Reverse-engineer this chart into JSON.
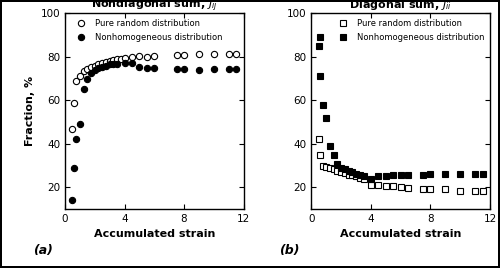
{
  "panel_a_title": "Nondiagonal sum, $J_{ij}$",
  "panel_b_title": "Diagonal sum, $J_{ii}$",
  "xlabel": "Accumulated strain",
  "ylabel": "Fraction, %",
  "label_a": "(a)",
  "label_b": "(b)",
  "legend_pure": "Pure random distribution",
  "legend_nonhom": "Nonhomogeneous distribution",
  "panel_a_pure_x": [
    0.5,
    0.6,
    0.75,
    1.0,
    1.25,
    1.5,
    1.75,
    2.0,
    2.25,
    2.5,
    2.75,
    3.0,
    3.25,
    3.5,
    3.75,
    4.0,
    4.5,
    5.0,
    5.5,
    6.0,
    7.5,
    8.0,
    9.0,
    10.0,
    11.0,
    11.5
  ],
  "panel_a_pure_y": [
    47.0,
    59.0,
    69.0,
    71.0,
    73.5,
    74.5,
    75.5,
    76.0,
    76.5,
    77.0,
    77.5,
    78.0,
    78.5,
    79.0,
    79.0,
    79.5,
    80.0,
    80.5,
    80.0,
    80.5,
    81.0,
    81.0,
    81.5,
    81.5,
    81.5,
    81.5
  ],
  "panel_a_nonhom_x": [
    0.5,
    0.6,
    0.75,
    1.0,
    1.25,
    1.5,
    1.75,
    2.0,
    2.25,
    2.5,
    2.75,
    3.0,
    3.25,
    3.5,
    4.0,
    4.5,
    5.0,
    5.5,
    6.0,
    7.5,
    8.0,
    9.0,
    10.0,
    11.0,
    11.5
  ],
  "panel_a_nonhom_y": [
    14.0,
    29.0,
    42.0,
    49.0,
    65.0,
    70.0,
    72.5,
    74.0,
    75.0,
    75.5,
    76.0,
    76.5,
    76.5,
    76.5,
    77.0,
    77.0,
    75.5,
    75.0,
    75.0,
    74.5,
    74.5,
    74.0,
    74.5,
    74.5,
    74.5
  ],
  "panel_b_pure_x": [
    0.5,
    0.6,
    0.75,
    1.0,
    1.25,
    1.5,
    1.75,
    2.0,
    2.25,
    2.5,
    2.75,
    3.0,
    3.25,
    3.5,
    4.0,
    4.5,
    5.0,
    5.5,
    6.0,
    6.5,
    7.5,
    8.0,
    9.0,
    10.0,
    11.0,
    11.5
  ],
  "panel_b_pure_y": [
    42.0,
    35.0,
    30.0,
    29.5,
    29.0,
    28.5,
    27.5,
    27.0,
    26.5,
    25.5,
    25.5,
    25.0,
    24.5,
    24.0,
    21.0,
    21.0,
    20.5,
    20.5,
    20.0,
    19.5,
    19.0,
    19.0,
    19.0,
    18.5,
    18.5,
    18.5
  ],
  "panel_b_nonhom_x": [
    0.5,
    0.55,
    0.6,
    0.75,
    1.0,
    1.25,
    1.5,
    1.75,
    2.0,
    2.25,
    2.5,
    2.75,
    3.0,
    3.25,
    3.5,
    4.0,
    4.5,
    5.0,
    5.5,
    6.0,
    6.5,
    7.5,
    8.0,
    9.0,
    10.0,
    11.0,
    11.5
  ],
  "panel_b_nonhom_y": [
    85.0,
    89.0,
    71.0,
    58.0,
    52.0,
    39.0,
    35.0,
    30.5,
    29.0,
    28.5,
    27.5,
    27.0,
    26.0,
    25.5,
    25.0,
    24.0,
    25.0,
    25.0,
    25.5,
    25.5,
    25.5,
    25.5,
    26.0,
    26.0,
    26.0,
    26.0,
    26.0
  ],
  "ylim_a": [
    10,
    100
  ],
  "ylim_b": [
    10,
    100
  ],
  "xlim": [
    0,
    12
  ],
  "yticks_a": [
    20,
    40,
    60,
    80,
    100
  ],
  "yticks_b": [
    20,
    40,
    60,
    80,
    100
  ],
  "xticks": [
    0,
    4,
    8,
    12
  ]
}
